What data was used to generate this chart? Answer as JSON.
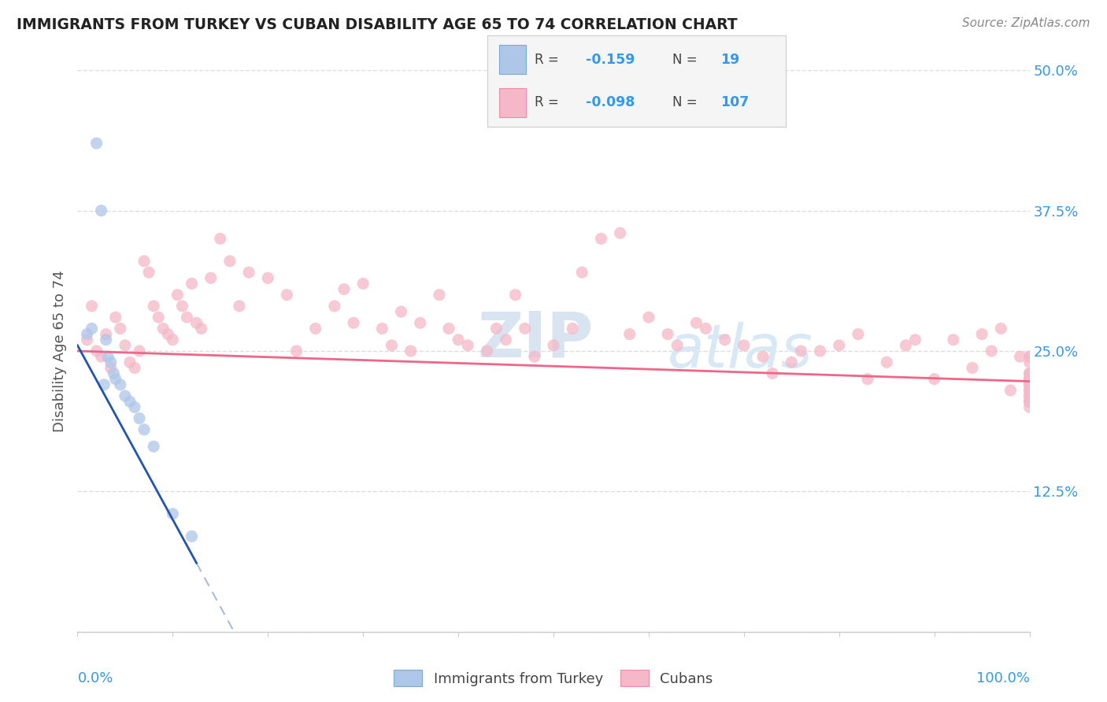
{
  "title": "IMMIGRANTS FROM TURKEY VS CUBAN DISABILITY AGE 65 TO 74 CORRELATION CHART",
  "source": "Source: ZipAtlas.com",
  "ylabel": "Disability Age 65 to 74",
  "x_range": [
    0,
    100
  ],
  "y_range": [
    0,
    50
  ],
  "y_ticks": [
    0,
    12.5,
    25.0,
    37.5,
    50.0
  ],
  "y_tick_labels": [
    "",
    "12.5%",
    "25.0%",
    "37.5%",
    "50.0%"
  ],
  "legend_turkey": "Immigrants from Turkey",
  "legend_cubans": "Cubans",
  "turkey_R": "-0.159",
  "turkey_N": "19",
  "cubans_R": "-0.098",
  "cubans_N": "107",
  "turkey_fill_color": "#aec6e8",
  "cubans_fill_color": "#f4b8c8",
  "turkey_edge_color": "#7aaad0",
  "cubans_edge_color": "#ee8aaa",
  "turkey_line_color": "#2255aa",
  "cubans_line_color": "#ee6688",
  "turkey_dash_color": "#aabbdd",
  "background_color": "#ffffff",
  "grid_color": "#dddddd",
  "watermark_zip_color": "#d8e4f0",
  "watermark_atlas_color": "#d8e8f4",
  "legend_bg": "#f5f5f5",
  "turkey_dots_x": [
    1.0,
    1.5,
    2.0,
    2.5,
    2.8,
    3.0,
    3.2,
    3.5,
    3.8,
    4.0,
    4.5,
    5.0,
    5.5,
    6.0,
    6.5,
    7.0,
    8.0,
    10.0,
    12.0
  ],
  "turkey_dots_y": [
    26.5,
    27.0,
    43.5,
    37.5,
    22.0,
    26.0,
    24.5,
    24.0,
    23.0,
    22.5,
    22.0,
    21.0,
    20.5,
    20.0,
    19.0,
    18.0,
    16.5,
    10.5,
    8.5
  ],
  "cubans_dots_x": [
    1.0,
    1.5,
    2.0,
    2.5,
    3.0,
    3.5,
    4.0,
    4.5,
    5.0,
    5.5,
    6.0,
    6.5,
    7.0,
    7.5,
    8.0,
    8.5,
    9.0,
    9.5,
    10.0,
    10.5,
    11.0,
    11.5,
    12.0,
    12.5,
    13.0,
    14.0,
    15.0,
    16.0,
    17.0,
    18.0,
    20.0,
    22.0,
    23.0,
    25.0,
    27.0,
    28.0,
    29.0,
    30.0,
    32.0,
    33.0,
    34.0,
    35.0,
    36.0,
    38.0,
    39.0,
    40.0,
    41.0,
    43.0,
    44.0,
    45.0,
    46.0,
    47.0,
    48.0,
    50.0,
    52.0,
    53.0,
    55.0,
    57.0,
    58.0,
    60.0,
    62.0,
    63.0,
    65.0,
    66.0,
    68.0,
    70.0,
    72.0,
    73.0,
    75.0,
    76.0,
    78.0,
    80.0,
    82.0,
    83.0,
    85.0,
    87.0,
    88.0,
    90.0,
    92.0,
    94.0,
    95.0,
    96.0,
    97.0,
    98.0,
    99.0,
    100.0,
    100.0,
    100.0,
    100.0,
    100.0,
    100.0,
    100.0,
    100.0,
    100.0,
    100.0,
    100.0,
    100.0,
    100.0,
    100.0,
    100.0,
    100.0,
    100.0,
    100.0,
    100.0,
    100.0,
    100.0,
    100.0
  ],
  "cubans_dots_y": [
    26.0,
    29.0,
    25.0,
    24.5,
    26.5,
    23.5,
    28.0,
    27.0,
    25.5,
    24.0,
    23.5,
    25.0,
    33.0,
    32.0,
    29.0,
    28.0,
    27.0,
    26.5,
    26.0,
    30.0,
    29.0,
    28.0,
    31.0,
    27.5,
    27.0,
    31.5,
    35.0,
    33.0,
    29.0,
    32.0,
    31.5,
    30.0,
    25.0,
    27.0,
    29.0,
    30.5,
    27.5,
    31.0,
    27.0,
    25.5,
    28.5,
    25.0,
    27.5,
    30.0,
    27.0,
    26.0,
    25.5,
    25.0,
    27.0,
    26.0,
    30.0,
    27.0,
    24.5,
    25.5,
    27.0,
    32.0,
    35.0,
    35.5,
    26.5,
    28.0,
    26.5,
    25.5,
    27.5,
    27.0,
    26.0,
    25.5,
    24.5,
    23.0,
    24.0,
    25.0,
    25.0,
    25.5,
    26.5,
    22.5,
    24.0,
    25.5,
    26.0,
    22.5,
    26.0,
    23.5,
    26.5,
    25.0,
    27.0,
    21.5,
    24.5,
    20.0,
    20.5,
    21.5,
    22.5,
    23.0,
    22.0,
    24.5,
    21.0,
    22.5,
    21.0,
    20.5,
    22.0,
    23.0,
    21.5,
    22.5,
    20.5,
    24.5,
    21.0,
    22.0,
    22.5,
    21.0,
    24.0
  ]
}
